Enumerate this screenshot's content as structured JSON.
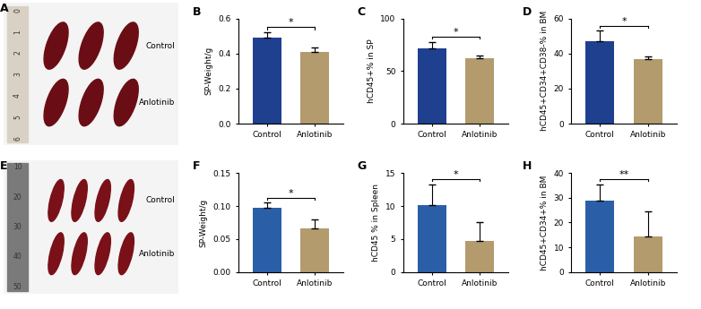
{
  "chart_data": [
    {
      "type": "image",
      "panel_label": "A",
      "labels": [
        "Control",
        "Anlotinib"
      ],
      "ruler_labels": [
        "0",
        "1",
        "2",
        "3",
        "4",
        "5",
        "6"
      ]
    },
    {
      "type": "bar",
      "panel_label": "B",
      "categories": [
        "Control",
        "Anlotinib"
      ],
      "values": [
        0.49,
        0.41
      ],
      "errors": [
        0.03,
        0.025
      ],
      "colors": [
        "#1f3f8f",
        "#b39b6e"
      ],
      "y_label": "SP-Weight/g",
      "ylim": [
        0,
        0.6
      ],
      "yticks": [
        {
          "value": 0,
          "label": "0.0"
        },
        {
          "value": 0.2,
          "label": "0.2"
        },
        {
          "value": 0.4,
          "label": "0.4"
        },
        {
          "value": 0.6,
          "label": "0.6"
        }
      ],
      "annotation": "*"
    },
    {
      "type": "bar",
      "panel_label": "C",
      "categories": [
        "Control",
        "Anlotinib"
      ],
      "values": [
        72,
        62
      ],
      "errors": [
        6,
        3
      ],
      "colors": [
        "#1f3f8f",
        "#b39b6e"
      ],
      "y_label": "hCD45+% in SP",
      "ylim": [
        0,
        100
      ],
      "yticks": [
        0,
        50,
        100
      ],
      "annotation": "*"
    },
    {
      "type": "bar",
      "panel_label": "D",
      "categories": [
        "Control",
        "Anlotinib"
      ],
      "values": [
        47,
        37
      ],
      "errors": [
        6,
        1.5
      ],
      "colors": [
        "#1f3f8f",
        "#b39b6e"
      ],
      "y_label": "hCD45+CD34+CD38-% in BM",
      "ylim": [
        0,
        60
      ],
      "yticks": [
        0,
        20,
        40,
        60
      ],
      "annotation": "*"
    },
    {
      "type": "image",
      "panel_label": "E",
      "labels": [
        "Control",
        "Anlotinib"
      ],
      "ruler_labels": [
        "10",
        "20",
        "30",
        "40",
        "50"
      ]
    },
    {
      "type": "bar",
      "panel_label": "F",
      "categories": [
        "Control",
        "Anlotinib"
      ],
      "values": [
        0.097,
        0.066
      ],
      "errors": [
        0.008,
        0.013
      ],
      "colors": [
        "#2a5fa8",
        "#b39b6e"
      ],
      "y_label": "SP-Weight/g",
      "ylim": [
        0,
        0.15
      ],
      "yticks": [
        {
          "value": 0,
          "label": "0.00"
        },
        {
          "value": 0.05,
          "label": "0.05"
        },
        {
          "value": 0.1,
          "label": "0.10"
        },
        {
          "value": 0.15,
          "label": "0.15"
        }
      ],
      "annotation": "*"
    },
    {
      "type": "bar",
      "panel_label": "G",
      "categories": [
        "Control",
        "Anlotinib"
      ],
      "values": [
        10.1,
        4.7
      ],
      "errors": [
        3.2,
        2.8
      ],
      "colors": [
        "#2a5fa8",
        "#b39b6e"
      ],
      "y_label": "hCD45 % in Spleen",
      "ylim": [
        0,
        15
      ],
      "yticks": [
        0,
        5,
        10,
        15
      ],
      "annotation": "*"
    },
    {
      "type": "bar",
      "panel_label": "H",
      "categories": [
        "Control",
        "Anlotinib"
      ],
      "values": [
        29,
        14.5
      ],
      "errors": [
        6.5,
        10
      ],
      "colors": [
        "#2a5fa8",
        "#b39b6e"
      ],
      "y_label": "hCD45+CD34+% in BM",
      "ylim": [
        0,
        40
      ],
      "yticks": [
        0,
        10,
        20,
        30,
        40
      ],
      "annotation": "**"
    }
  ]
}
